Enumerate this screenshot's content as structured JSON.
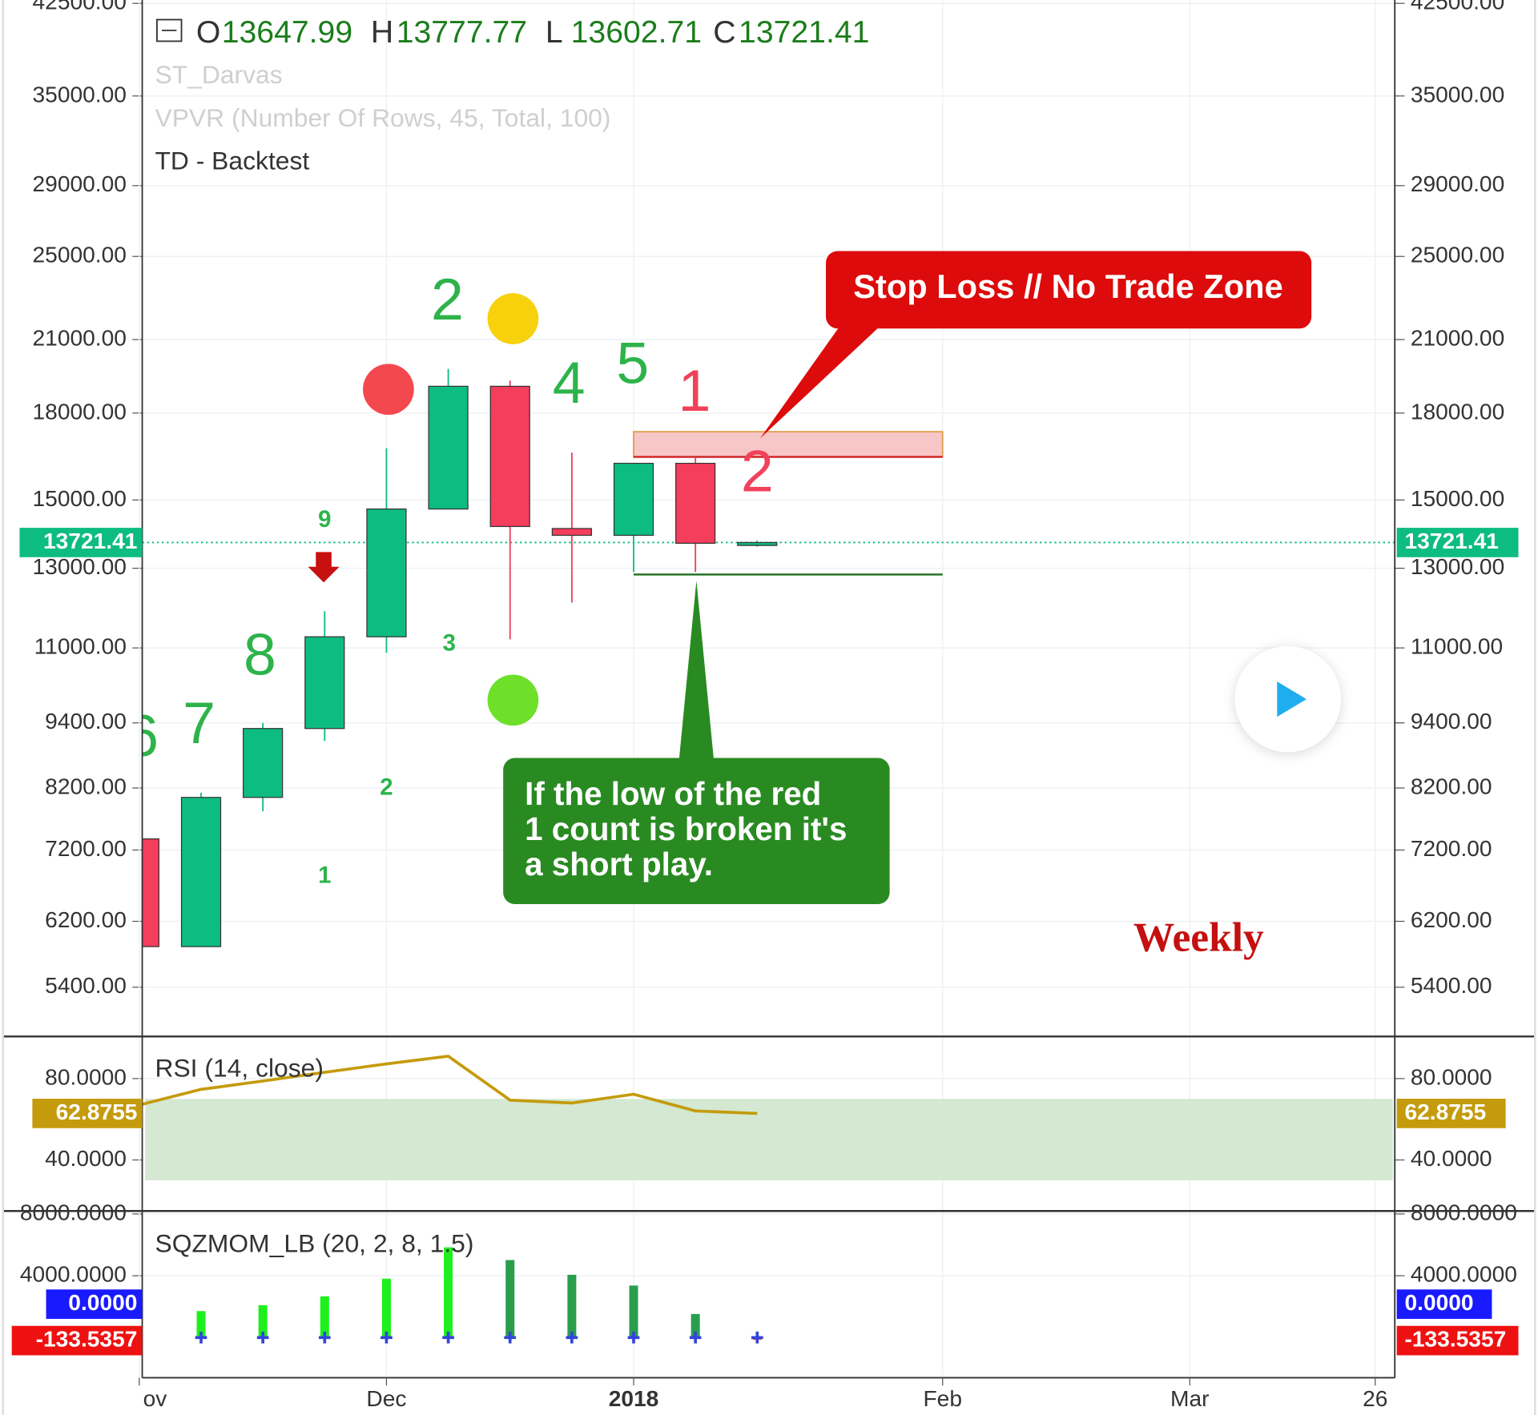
{
  "chart_data": [
    {
      "type": "candlestick",
      "ohlc_letters": [
        "O",
        "H",
        "L",
        "C"
      ],
      "indicators": [
        "ST_Darvas",
        "VPVR (Number Of Rows, 45, Total, 100)",
        "TD - Backtest"
      ],
      "open": [
        7370,
        5880,
        8040,
        9290,
        11260,
        14720,
        19040,
        14130,
        13930,
        16200,
        13647.99,
        null,
        null,
        null,
        null,
        null,
        null,
        null,
        null,
        null,
        null
      ],
      "high": [
        7370,
        8120,
        9400,
        11880,
        16720,
        19750,
        19270,
        16570,
        16200,
        16380,
        13777.77,
        null,
        null,
        null,
        null,
        null,
        null,
        null,
        null,
        null,
        null
      ],
      "low": [
        5880,
        5880,
        7810,
        9050,
        10890,
        14720,
        11200,
        12100,
        12900,
        12900,
        13602.71,
        null,
        null,
        null,
        null,
        null,
        null,
        null,
        null,
        null,
        null
      ],
      "close": [
        5880,
        8040,
        9290,
        11260,
        14720,
        19040,
        14190,
        13930,
        16200,
        13700,
        13721.41,
        null,
        null,
        null,
        null,
        null,
        null,
        null,
        null,
        null,
        null
      ],
      "up_color": "#0dbc80",
      "down_color": "#f53d5c",
      "last_color": "#0dbc80",
      "log_scale": true,
      "grid": true,
      "ylim": [
        4870,
        42800
      ],
      "yticks": [
        {
          "value": 42500,
          "label": "42500.00"
        },
        {
          "value": 35000,
          "label": "35000.00"
        },
        {
          "value": 29000,
          "label": "29000.00"
        },
        {
          "value": 25000,
          "label": "25000.00"
        },
        {
          "value": 21000,
          "label": "21000.00"
        },
        {
          "value": 18000,
          "label": "18000.00"
        },
        {
          "value": 15000,
          "label": "15000.00"
        },
        {
          "value": 13000,
          "label": "13000.00"
        },
        {
          "value": 11000,
          "label": "11000.00"
        },
        {
          "value": 9400,
          "label": "9400.00"
        },
        {
          "value": 8200,
          "label": "8200.00"
        },
        {
          "value": 7200,
          "label": "7200.00"
        },
        {
          "value": 6200,
          "label": "6200.00"
        },
        {
          "value": 5400,
          "label": "5400.00"
        }
      ],
      "td_counts": [
        {
          "text": "6",
          "color": "#2db34a"
        },
        {
          "text": "7",
          "color": "#2db34a"
        },
        {
          "text": "8",
          "color": "#2db34a"
        },
        {
          "text": "9",
          "color": "#2db34a"
        },
        {
          "text": "1",
          "color": "#2db34a"
        },
        {
          "text": "2",
          "color": "#2db34a"
        },
        {
          "text": "3",
          "color": "#2db34a"
        },
        {
          "text": "2",
          "color": "#2db34a"
        },
        {
          "text": "4",
          "color": "#2db34a"
        },
        {
          "text": "5",
          "color": "#2db34a"
        },
        {
          "text": "1",
          "color": "#f0425a"
        },
        {
          "text": "2",
          "color": "#f0425a"
        }
      ],
      "stop_zone": [
        16420,
        17310
      ],
      "support_level": 12830,
      "stop_callout": "Stop Loss // No Trade Zone",
      "short_callout": [
        "If the low of the red",
        "1 count is broken it's",
        "a short play."
      ],
      "timeframe_label": "Weekly"
    },
    {
      "type": "line",
      "title": "RSI (14, close)",
      "values": [
        67,
        74.7,
        78.8,
        83.1,
        87.2,
        91,
        69.4,
        68,
        72.3,
        64.1,
        62.8755,
        null,
        null,
        null,
        null,
        null,
        null,
        null,
        null,
        null,
        null
      ],
      "color": "#c49b0c",
      "band": [
        30,
        70
      ],
      "ylim": [
        14.9,
        100.7
      ],
      "yticks": [
        {
          "value": 80,
          "label": "80.0000"
        },
        {
          "value": 40,
          "label": "40.0000"
        }
      ]
    },
    {
      "type": "bar",
      "title": "SQZMOM_LB (20, 2, 8, 1.5)",
      "categories": [
        "ov",
        null,
        null,
        null,
        "Dec",
        null,
        null,
        null,
        "2018",
        null,
        null,
        null,
        null,
        "Feb",
        null,
        null,
        null,
        "Mar",
        null,
        null,
        "26"
      ],
      "values": [
        null,
        1714,
        2095,
        2667,
        3810,
        5840,
        5016,
        4063,
        3365,
        1524,
        -133.5357,
        null,
        null,
        null,
        null,
        null,
        null,
        null,
        null,
        null,
        null
      ],
      "colors": [
        null,
        "#1ef01e",
        "#1ef01e",
        "#1ef01e",
        "#1ef01e",
        "#1ef01e",
        "#2a9e4c",
        "#2a9e4c",
        "#2a9e4c",
        "#2a9e4c",
        "#ee1111",
        null,
        null,
        null,
        null,
        null,
        null,
        null,
        null,
        null,
        null
      ],
      "squeeze": {
        "color": "#3344dd",
        "label_color": "#1a1aff",
        "values": [
          null,
          0,
          0,
          0,
          0,
          0,
          0,
          0,
          0,
          0,
          0,
          null,
          null,
          null,
          null,
          null,
          null,
          null,
          null,
          null,
          null
        ],
        "value_labels": [
          null,
          null,
          null,
          null,
          null,
          null,
          null,
          null,
          null,
          null,
          "0.0000",
          null,
          null,
          null,
          null,
          null,
          null,
          null,
          null,
          null,
          null
        ]
      },
      "ylim": [
        -2600,
        8190
      ],
      "yticks": [
        {
          "value": 8000,
          "label": "8000.0000"
        },
        {
          "value": 4000,
          "label": "4000.0000"
        }
      ]
    }
  ]
}
